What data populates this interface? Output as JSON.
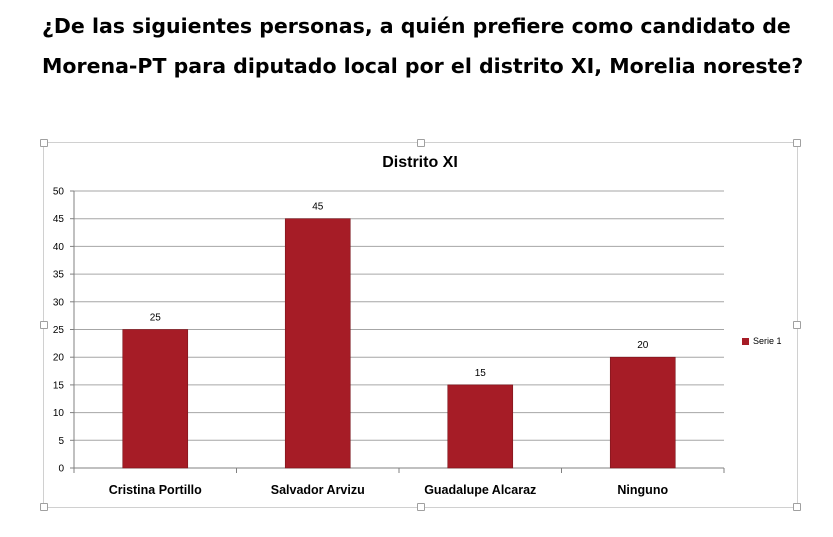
{
  "question_line1": "¿De las siguientes personas, a quién prefiere como candidato de",
  "question_line2": "Morena-PT para diputado local por el distrito XI, Morelia noreste?",
  "chart_data": {
    "type": "bar",
    "title": "Distrito XI",
    "categories": [
      "Cristina Portillo",
      "Salvador Arvizu",
      "Guadalupe Alcaraz",
      "Ninguno"
    ],
    "series": [
      {
        "name": "Serie 1",
        "values": [
          25,
          45,
          15,
          20
        ],
        "color": "#a61c26"
      }
    ],
    "ylim": [
      0,
      50
    ],
    "yticks": [
      0,
      5,
      10,
      15,
      20,
      25,
      30,
      35,
      40,
      45,
      50
    ],
    "grid": true,
    "legend_position": "right",
    "data_labels": true,
    "xlabel": "",
    "ylabel": ""
  }
}
